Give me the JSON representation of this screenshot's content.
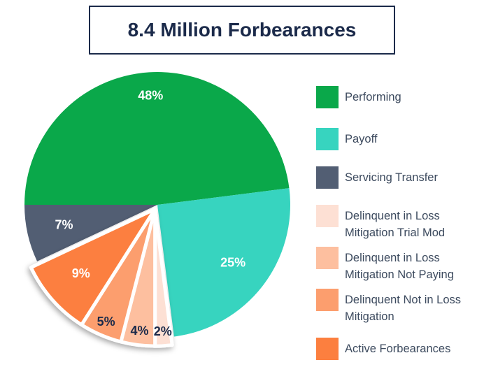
{
  "chart_data": {
    "type": "pie",
    "title": "8.4 Million Forbearances",
    "series": [
      {
        "name": "Performing",
        "color": "#0aa84a",
        "values": [
          48
        ],
        "value_labels": [
          "48%"
        ]
      },
      {
        "name": "Payoff",
        "color": "#37d4bf",
        "values": [
          25
        ],
        "value_labels": [
          "25%"
        ]
      },
      {
        "name": "Servicing Transfer",
        "color": "#525e73",
        "values": [
          7
        ],
        "value_labels": [
          "7%"
        ]
      },
      {
        "name": "Delinquent in Loss Mitigation Trial Mod",
        "color": "#fde0d4",
        "values": [
          2
        ],
        "value_labels": [
          "2%"
        ]
      },
      {
        "name": "Delinquent in Loss Mitigation Not Paying",
        "color": "#fdbf9f",
        "values": [
          4
        ],
        "value_labels": [
          "4%"
        ]
      },
      {
        "name": "Delinquent Not in Loss Mitigation",
        "color": "#fc9e6e",
        "values": [
          5
        ],
        "value_labels": [
          "5%"
        ]
      },
      {
        "name": "Active Forbearances",
        "color": "#fc7f3f",
        "values": [
          9
        ],
        "value_labels": [
          "9%"
        ]
      }
    ],
    "legend": "right"
  }
}
